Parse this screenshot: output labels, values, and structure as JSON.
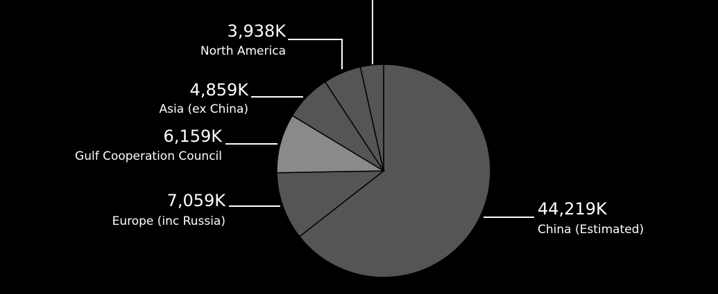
{
  "chart_data": {
    "type": "pie",
    "categories": [
      "China (Estimated)",
      "Europe (inc Russia)",
      "Gulf Cooperation Council",
      "Asia (ex China)",
      "North America",
      null
    ],
    "values": [
      44219,
      7059,
      6159,
      4859,
      3938,
      2400
    ],
    "value_labels": [
      "44,219K",
      "7,059K",
      "6,159K",
      "4,859K",
      "3,938K",
      null
    ],
    "colors": [
      "#555555",
      "#555555",
      "#8a8a8a",
      "#555555",
      "#555555",
      "#555555"
    ]
  }
}
